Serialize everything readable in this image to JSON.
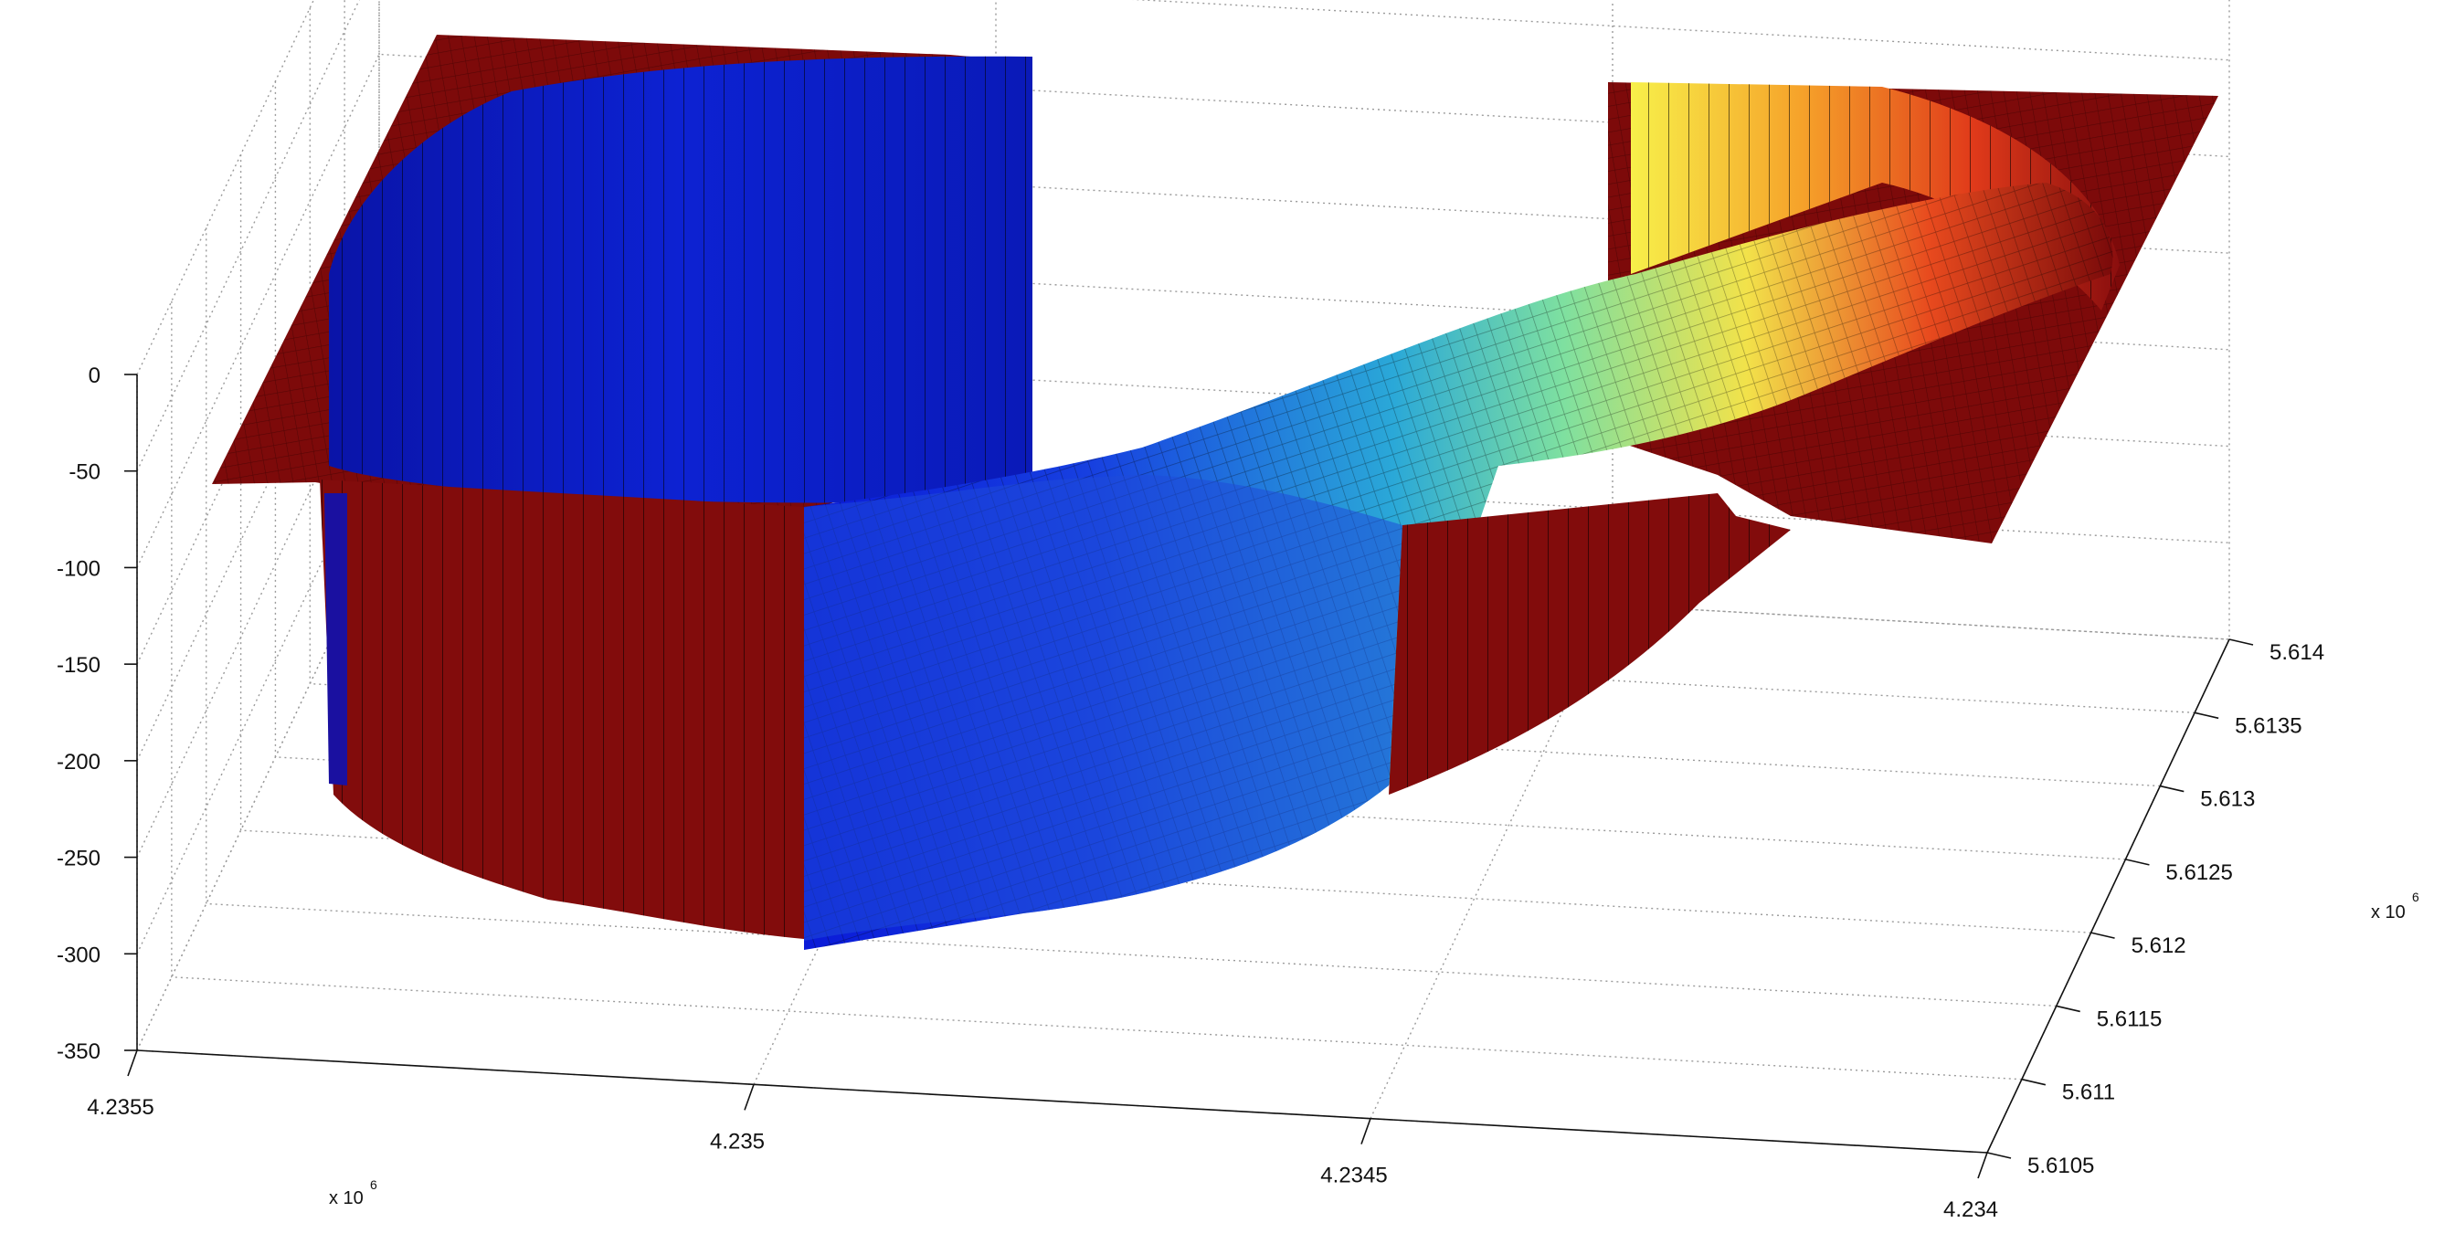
{
  "chart_data": {
    "type": "surface",
    "title": "",
    "xlabel": "",
    "ylabel": "",
    "zlabel": "",
    "grid": true,
    "colormap": "jet",
    "x_axis": {
      "exponent_label": "x 10",
      "exponent": "6",
      "ticks": [
        "4.2355",
        "4.235",
        "4.2345",
        "4.234"
      ],
      "range": [
        4.234,
        4.2355
      ]
    },
    "y_axis": {
      "exponent_label": "x 10",
      "exponent": "6",
      "ticks": [
        "5.6105",
        "5.611",
        "5.6115",
        "5.612",
        "5.6125",
        "5.613",
        "5.6135",
        "5.614"
      ],
      "range": [
        5.6105,
        5.614
      ]
    },
    "z_axis": {
      "ticks": [
        "0",
        "-50",
        "-100",
        "-150",
        "-200",
        "-250",
        "-300",
        "-350"
      ],
      "range": [
        -350,
        0
      ]
    },
    "surface": {
      "description_shape": "circular channel cut into a flat plane; flat surface at z = 0, channel bottom slopes from about -290 (blue) up toward about -20 (red)",
      "flat_level": 0,
      "channel_bottom_range": [
        -290,
        -20
      ],
      "colormap_stops": [
        "#00008f",
        "#0000ff",
        "#00ffff",
        "#ffff00",
        "#ff0000",
        "#800000"
      ]
    }
  }
}
